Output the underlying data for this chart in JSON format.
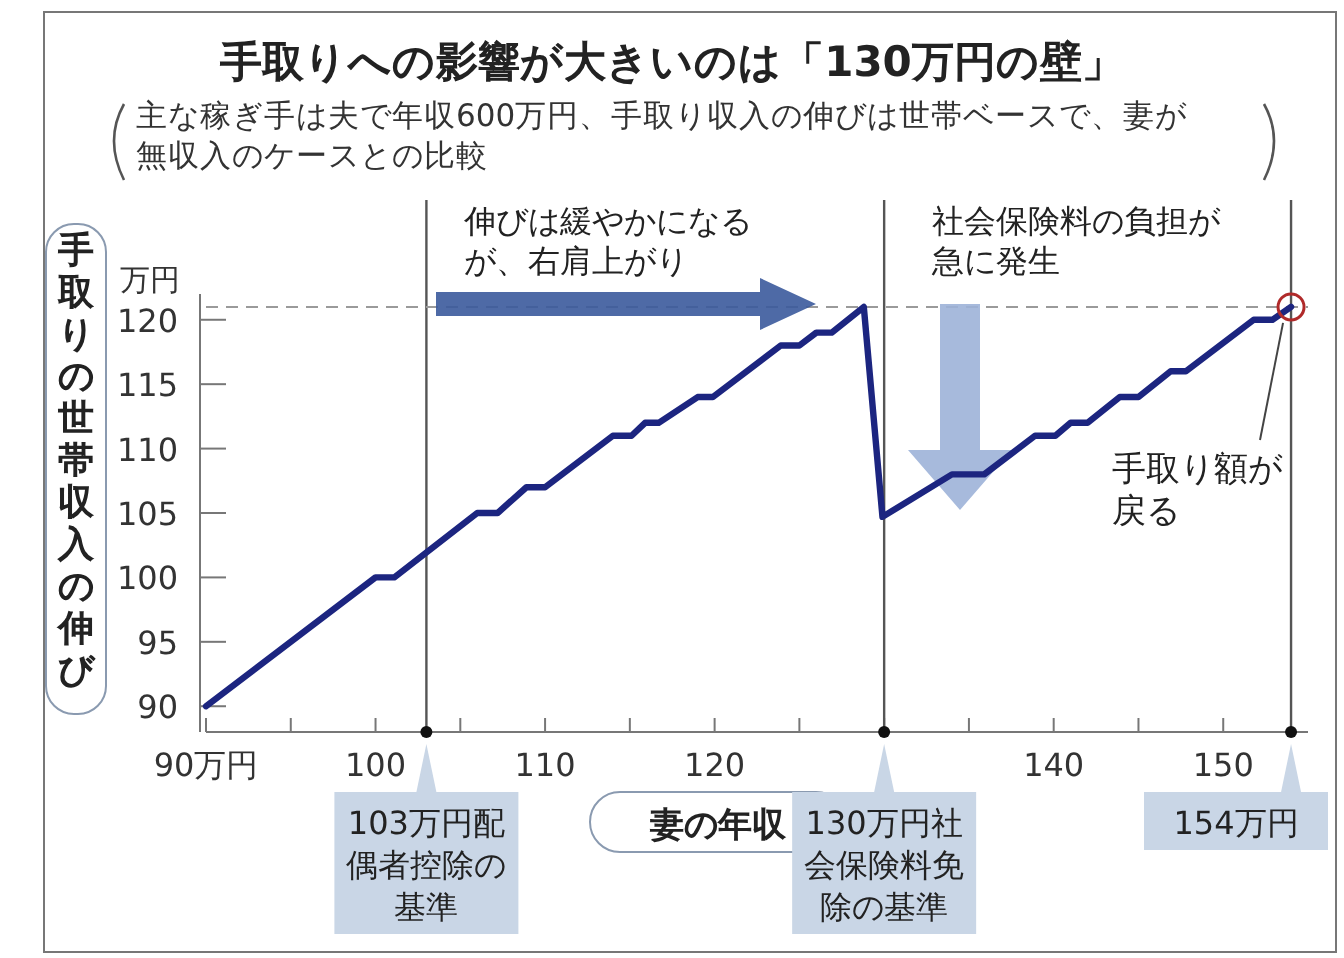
{
  "chart_data": {
    "type": "line",
    "title": "手取りへの影響が大きいのは「130万円の壁」",
    "subtitle": "主な稼ぎ手は夫で年収600万円、手取り収入の伸びは世帯ベースで、妻が無収入のケースとの比較",
    "xlabel": "妻の年収",
    "ylabel": "手取りの世帯収入の伸び",
    "x": [
      90,
      100,
      101.1,
      106,
      107.2,
      108.9,
      110,
      114,
      115.1,
      115.9,
      116.7,
      119,
      119.9,
      123.9,
      125,
      126,
      126.9,
      128.8,
      129.9,
      134,
      135.9,
      138.9,
      140.1,
      141,
      142,
      143.9,
      145,
      146.9,
      147.8,
      151.8,
      152.9,
      154
    ],
    "series": [
      {
        "color": "#1c2580",
        "values": [
          90,
          100,
          100,
          105,
          105,
          107,
          107,
          111,
          111,
          112,
          112,
          114,
          114,
          118,
          118,
          119,
          119,
          121,
          104.7,
          108,
          108,
          111,
          111,
          112,
          112,
          114,
          114,
          116,
          116,
          120,
          120,
          121
        ]
      }
    ],
    "xlim": [
      90,
      155
    ],
    "ylim": [
      88,
      122
    ],
    "xticks": [
      {
        "value": 90,
        "label": "90万円"
      },
      {
        "value": 95,
        "label": null
      },
      100,
      {
        "value": 105,
        "label": null
      },
      110,
      {
        "value": 115,
        "label": null
      },
      120,
      {
        "value": 125,
        "label": null
      },
      {
        "value": 130,
        "label": null
      },
      {
        "value": 135,
        "label": null
      },
      140,
      {
        "value": 145,
        "label": null
      },
      150
    ],
    "yticks": [
      90,
      95,
      100,
      105,
      110,
      115,
      120
    ],
    "grid": false,
    "line_style": "solid",
    "ref_lines": [
      {
        "axis": "x",
        "value": 103,
        "label": "103万円配偶者控除の基準",
        "color": "#555555"
      },
      {
        "axis": "x",
        "value": 130,
        "label": "130万円社会保険料免除の基準",
        "color": "#555555"
      },
      {
        "axis": "x",
        "value": 154,
        "label": "154万円",
        "color": "#555555"
      },
      {
        "axis": "y",
        "value": 121,
        "line_style": "dashed",
        "color": "#9a9a9a"
      }
    ],
    "annotations": [
      "万円",
      "伸びは緩やかになるが、右肩上がり",
      "社会保険料の負担が急に発生",
      {
        "text": "手取り額が戻る",
        "x": 154,
        "y": 121
      }
    ]
  }
}
